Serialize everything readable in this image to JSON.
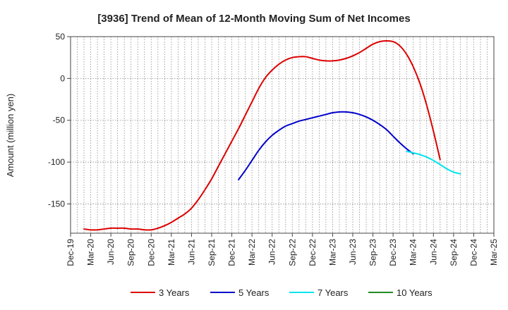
{
  "chart_data": {
    "type": "line",
    "title": "[3936]  Trend of Mean of 12-Month Moving Sum of Net Incomes",
    "ylabel": "Amount (million yen)",
    "xlabel": "",
    "ylim": [
      -185,
      50
    ],
    "yticks": [
      50,
      0,
      -50,
      -100,
      -150
    ],
    "x_tick_labels": [
      "Dec-19",
      "Mar-20",
      "Jun-20",
      "Sep-20",
      "Dec-20",
      "Mar-21",
      "Jun-21",
      "Sep-21",
      "Dec-21",
      "Mar-22",
      "Jun-22",
      "Sep-22",
      "Dec-22",
      "Mar-23",
      "Jun-23",
      "Sep-23",
      "Dec-23",
      "Mar-24",
      "Jun-24",
      "Sep-24",
      "Dec-24",
      "Mar-25"
    ],
    "grid": true,
    "legend_position": "bottom",
    "series": [
      {
        "name": "3 Years",
        "color": "#dd0000",
        "points": [
          [
            "Feb-20",
            -180
          ],
          [
            "Mar-20",
            -181
          ],
          [
            "Apr-20",
            -181
          ],
          [
            "May-20",
            -180
          ],
          [
            "Jun-20",
            -179
          ],
          [
            "Jul-20",
            -179
          ],
          [
            "Aug-20",
            -179
          ],
          [
            "Sep-20",
            -180
          ],
          [
            "Oct-20",
            -180
          ],
          [
            "Nov-20",
            -181
          ],
          [
            "Dec-20",
            -181
          ],
          [
            "Jan-21",
            -179
          ],
          [
            "Feb-21",
            -176
          ],
          [
            "Mar-21",
            -172
          ],
          [
            "Apr-21",
            -167
          ],
          [
            "May-21",
            -162
          ],
          [
            "Jun-21",
            -155
          ],
          [
            "Jul-21",
            -145
          ],
          [
            "Aug-21",
            -133
          ],
          [
            "Sep-21",
            -120
          ],
          [
            "Oct-21",
            -105
          ],
          [
            "Nov-21",
            -90
          ],
          [
            "Dec-21",
            -75
          ],
          [
            "Jan-22",
            -60
          ],
          [
            "Feb-22",
            -44
          ],
          [
            "Mar-22",
            -28
          ],
          [
            "Apr-22",
            -12
          ],
          [
            "May-22",
            1
          ],
          [
            "Jun-22",
            10
          ],
          [
            "Jul-22",
            17
          ],
          [
            "Aug-22",
            22
          ],
          [
            "Sep-22",
            25
          ],
          [
            "Oct-22",
            26
          ],
          [
            "Nov-22",
            26
          ],
          [
            "Dec-22",
            24
          ],
          [
            "Jan-23",
            22
          ],
          [
            "Feb-23",
            21
          ],
          [
            "Mar-23",
            21
          ],
          [
            "Apr-23",
            22
          ],
          [
            "May-23",
            24
          ],
          [
            "Jun-23",
            27
          ],
          [
            "Jul-23",
            31
          ],
          [
            "Aug-23",
            36
          ],
          [
            "Sep-23",
            41
          ],
          [
            "Oct-23",
            44
          ],
          [
            "Nov-23",
            45
          ],
          [
            "Dec-23",
            44
          ],
          [
            "Jan-24",
            39
          ],
          [
            "Feb-24",
            29
          ],
          [
            "Mar-24",
            14
          ],
          [
            "Apr-24",
            -6
          ],
          [
            "May-24",
            -32
          ],
          [
            "Jun-24",
            -63
          ],
          [
            "Jul-24",
            -97
          ]
        ]
      },
      {
        "name": "5 Years",
        "color": "#0000cc",
        "points": [
          [
            "Jan-22",
            -121
          ],
          [
            "Feb-22",
            -110
          ],
          [
            "Mar-22",
            -98
          ],
          [
            "Apr-22",
            -86
          ],
          [
            "May-22",
            -76
          ],
          [
            "Jun-22",
            -68
          ],
          [
            "Jul-22",
            -62
          ],
          [
            "Aug-22",
            -57
          ],
          [
            "Sep-22",
            -54
          ],
          [
            "Oct-22",
            -51
          ],
          [
            "Nov-22",
            -49
          ],
          [
            "Dec-22",
            -47
          ],
          [
            "Jan-23",
            -45
          ],
          [
            "Feb-23",
            -43
          ],
          [
            "Mar-23",
            -41
          ],
          [
            "Apr-23",
            -40
          ],
          [
            "May-23",
            -40
          ],
          [
            "Jun-23",
            -41
          ],
          [
            "Jul-23",
            -43
          ],
          [
            "Aug-23",
            -46
          ],
          [
            "Sep-23",
            -50
          ],
          [
            "Oct-23",
            -55
          ],
          [
            "Nov-23",
            -61
          ],
          [
            "Dec-23",
            -69
          ],
          [
            "Jan-24",
            -77
          ],
          [
            "Feb-24",
            -84
          ],
          [
            "Mar-24",
            -90
          ]
        ]
      },
      {
        "name": "7 Years",
        "color": "#00e5ee",
        "points": [
          [
            "Feb-24",
            -87
          ],
          [
            "Mar-24",
            -89
          ],
          [
            "Apr-24",
            -91
          ],
          [
            "May-24",
            -94
          ],
          [
            "Jun-24",
            -98
          ],
          [
            "Jul-24",
            -103
          ],
          [
            "Aug-24",
            -108
          ],
          [
            "Sep-24",
            -112
          ],
          [
            "Oct-24",
            -114
          ]
        ]
      },
      {
        "name": "10 Years",
        "color": "#228b22",
        "points": []
      }
    ]
  }
}
